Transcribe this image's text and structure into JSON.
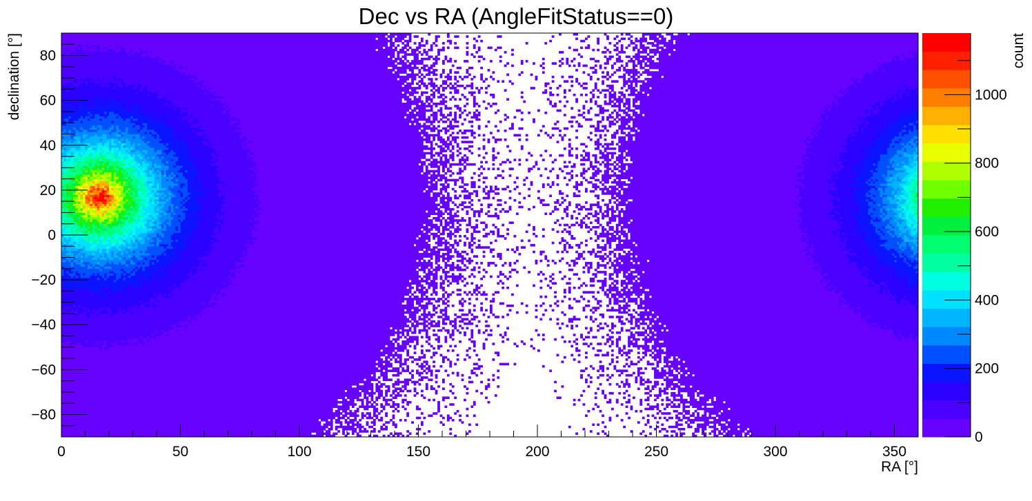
{
  "chart_data": {
    "type": "heatmap",
    "title": "Dec vs RA (AngleFitStatus==0)",
    "xlabel": "RA [°]",
    "ylabel": "declination [°]",
    "zlabel": "count",
    "xlim": [
      0,
      360
    ],
    "ylim": [
      -90,
      90
    ],
    "zlim": [
      0,
      1180
    ],
    "x_ticks": [
      0,
      50,
      100,
      150,
      200,
      250,
      300,
      350
    ],
    "y_ticks": [
      -80,
      -60,
      -40,
      -20,
      0,
      20,
      40,
      60,
      80
    ],
    "z_ticks": [
      0,
      200,
      400,
      600,
      800,
      1000
    ],
    "x_tick_labels": [
      "0",
      "50",
      "100",
      "150",
      "200",
      "250",
      "300",
      "350"
    ],
    "y_tick_labels": [
      "−80",
      "−60",
      "−40",
      "−20",
      "0",
      "20",
      "40",
      "60",
      "80"
    ],
    "z_tick_labels": [
      "0",
      "200",
      "400",
      "600",
      "800",
      "1000"
    ],
    "palette": [
      "#6600ff",
      "#4a00ff",
      "#2a00ff",
      "#0a14ff",
      "#0050ff",
      "#0088ff",
      "#00b4ff",
      "#00e0ff",
      "#00ffe0",
      "#00ffa0",
      "#00ff70",
      "#00f040",
      "#20f000",
      "#70ff00",
      "#b0ff00",
      "#e8ff00",
      "#ffe000",
      "#ffb000",
      "#ff8000",
      "#ff5000",
      "#ff2000",
      "#ff0000"
    ],
    "peak": {
      "ra": 16,
      "dec": 17,
      "count": 1180
    },
    "annotations": []
  }
}
